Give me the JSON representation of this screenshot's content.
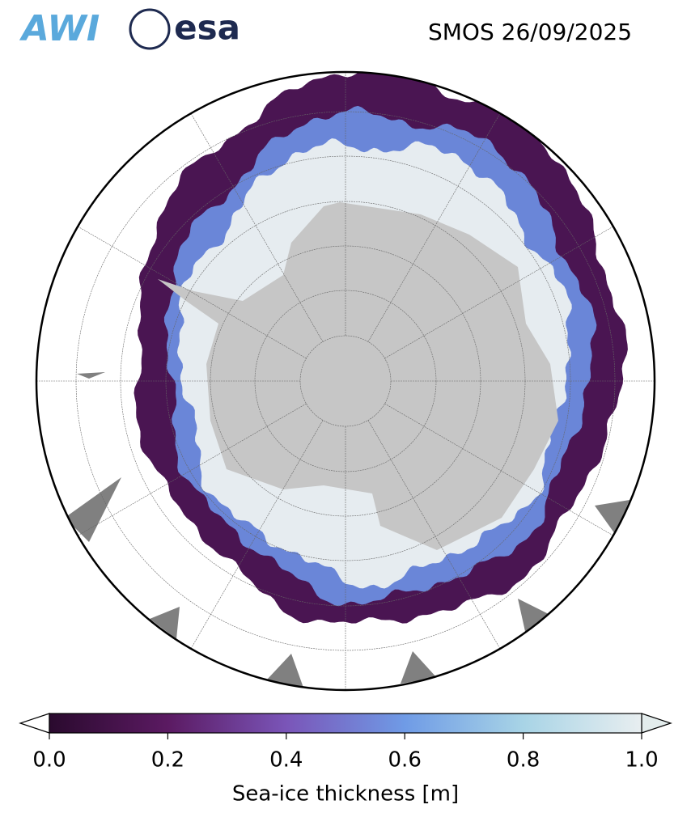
{
  "header": {
    "logos": [
      "AWI",
      "esa"
    ],
    "title": "SMOS 26/09/2025"
  },
  "colorbar": {
    "label": "Sea-ice thickness [m]",
    "range": [
      0,
      1
    ],
    "ticks": [
      {
        "value": 0,
        "label": "0.0"
      },
      0.2,
      0.4,
      0.6,
      0.8,
      {
        "value": 1,
        "label": "1.0"
      }
    ],
    "colors": [
      "#2a0a2e",
      "#5b1a62",
      "#7a55b8",
      "#6f9be6",
      "#a8d4e6",
      "#e8eef0"
    ]
  }
}
